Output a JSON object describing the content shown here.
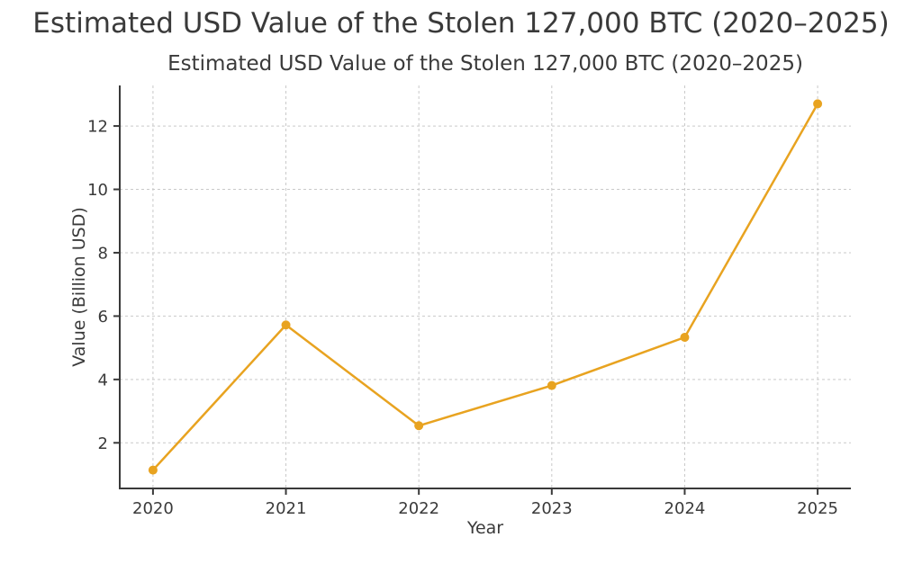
{
  "page": {
    "title": "Estimated USD Value of the Stolen 127,000 BTC (2020–2025)"
  },
  "chart_data": {
    "type": "line",
    "title": "Estimated USD Value of the Stolen 127,000 BTC (2020–2025)",
    "xlabel": "Year",
    "ylabel": "Value (Billion USD)",
    "x": [
      2020,
      2021,
      2022,
      2023,
      2024,
      2025
    ],
    "values": [
      1.14,
      5.72,
      2.54,
      3.81,
      5.33,
      12.7
    ],
    "xticks": [
      2020,
      2021,
      2022,
      2023,
      2024,
      2025
    ],
    "yticks": [
      2,
      4,
      6,
      8,
      10,
      12
    ],
    "xlim": [
      2019.75,
      2025.25
    ],
    "ylim": [
      0.56,
      13.28
    ],
    "grid": true,
    "grid_style": "dashed",
    "legend": "none",
    "colors": {
      "line": "#E8A320",
      "marker": "#E8A320",
      "grid": "#c9c9c9",
      "spine": "#3a3a3a",
      "text": "#3a3a3a",
      "background": "#ffffff"
    }
  }
}
